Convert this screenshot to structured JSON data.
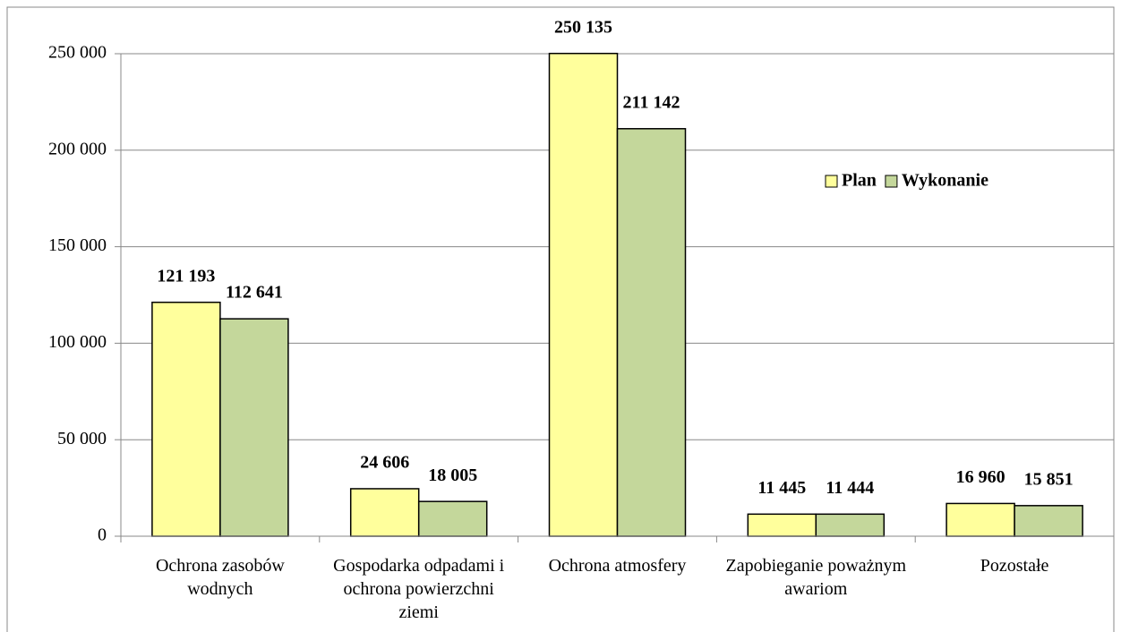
{
  "chart_data": {
    "type": "bar",
    "categories": [
      "Ochrona zasobów wodnych",
      "Gospodarka odpadami i ochrona powierzchni ziemi",
      "Ochrona atmosfery",
      "Zapobieganie poważnym awariom",
      "Pozostałe"
    ],
    "series": [
      {
        "name": "Plan",
        "color": "#ffff9c",
        "values": [
          121193,
          24606,
          250135,
          11445,
          16960
        ],
        "value_labels": [
          "121 193",
          "24 606",
          "250 135",
          "11 445",
          "16 960"
        ]
      },
      {
        "name": "Wykonanie",
        "color": "#c4d79b",
        "values": [
          112641,
          18005,
          211142,
          11444,
          15851
        ],
        "value_labels": [
          "112 641",
          "18 005",
          "211 142",
          "11 444",
          "15 851"
        ]
      }
    ],
    "ylim": [
      0,
      250000
    ],
    "yticks": [
      0,
      {
        "value": 50000,
        "label": "50 000"
      },
      {
        "value": 100000,
        "label": "100 000"
      },
      {
        "value": 150000,
        "label": "150 000"
      },
      {
        "value": 200000,
        "label": "200 000"
      },
      {
        "value": 250000,
        "label": "250 000"
      }
    ],
    "grid": true,
    "legend": "right"
  }
}
